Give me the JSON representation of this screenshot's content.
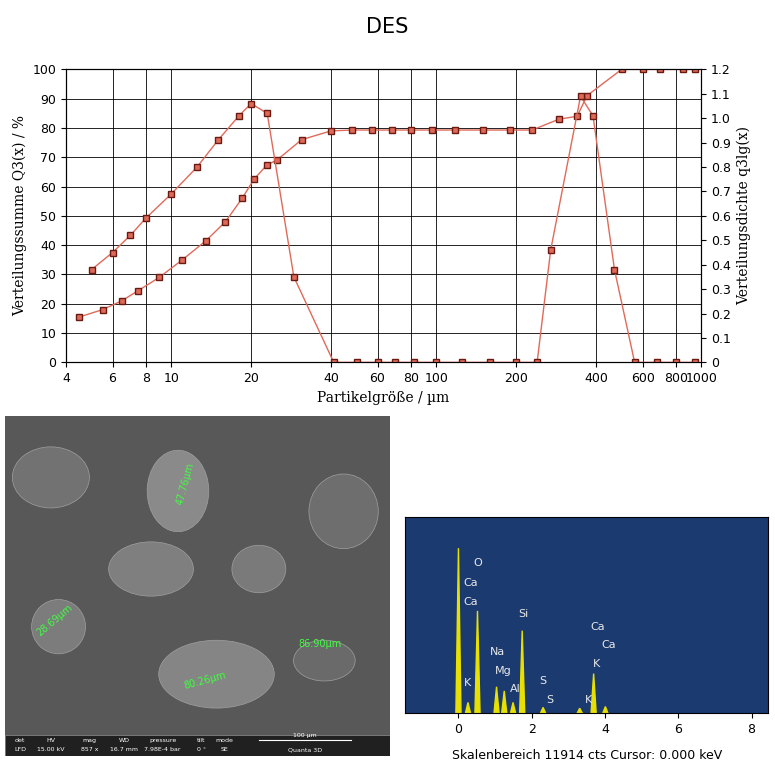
{
  "chart_data": [
    {
      "type": "line",
      "title": "DES",
      "x_label": "Partikelgröße / µm",
      "y_label": "Verteilungssumme Q3(x) / %",
      "y2_label": "Verteilungsdichte q3lg(x)",
      "log": "x",
      "grid": true,
      "xlim": [
        4,
        1000
      ],
      "xticks": [
        4,
        6,
        8,
        10,
        20,
        40,
        60,
        80,
        100,
        200,
        400,
        600,
        800,
        1000
      ],
      "ylim": [
        0,
        100
      ],
      "yticks": [
        0,
        10,
        20,
        30,
        40,
        50,
        60,
        70,
        80,
        90,
        100
      ],
      "y2lim": [
        0,
        1.2
      ],
      "y2ticks": [
        0,
        0.1,
        0.2,
        0.3,
        0.4,
        0.5,
        0.6,
        0.7,
        0.8,
        0.9,
        {
          "value": 1,
          "label": "1.0"
        },
        1.1,
        1.2
      ],
      "series": [
        {
          "axis": "y",
          "color": "#e06a5a",
          "marker": "square",
          "line_style": "solid",
          "x": [
            4.5,
            5.5,
            6.5,
            7.5,
            9,
            11,
            13.5,
            16,
            18.5,
            20.5,
            23,
            25,
            31,
            40,
            48,
            57,
            68,
            80,
            96,
            118,
            150,
            190,
            230,
            290,
            340,
            370,
            500,
            600,
            700,
            850,
            950
          ],
          "values": [
            15.5,
            18,
            21,
            24.5,
            29,
            35,
            41.5,
            48,
            56,
            62.5,
            67.5,
            69,
            76,
            79,
            79.3,
            79.3,
            79.3,
            79.3,
            79.3,
            79.3,
            79.3,
            79.3,
            79.3,
            83,
            84,
            91,
            100,
            100,
            100,
            100,
            100
          ]
        },
        {
          "axis": "y2",
          "color": "#e06a5a",
          "marker": "square",
          "line_style": "solid",
          "x": [
            5,
            6,
            7,
            8,
            10,
            12.5,
            15,
            18,
            20,
            23,
            29,
            41,
            50,
            60,
            70,
            82,
            100,
            125,
            160,
            200,
            240,
            270,
            350,
            390,
            470,
            560,
            680,
            800,
            950
          ],
          "values": [
            0.38,
            0.45,
            0.52,
            0.59,
            0.69,
            0.8,
            0.91,
            1.01,
            1.06,
            1.02,
            0.35,
            0,
            0,
            0,
            0,
            0,
            0,
            0,
            0,
            0,
            0,
            0.46,
            1.09,
            1.01,
            0.38,
            0,
            0,
            0,
            0
          ]
        }
      ]
    },
    {
      "type": "spectrum",
      "caption": "Skalenbereich 11914 cts Cursor: 0.000 keV",
      "xlim": [
        -1.45,
        8.45
      ],
      "xticks": [
        0,
        2,
        4,
        6,
        8
      ],
      "ylim": [
        0,
        11914
      ],
      "tick_labels": "x",
      "color": "#e8e000",
      "x": [
        0.0,
        0.26,
        0.52,
        1.04,
        1.25,
        1.49,
        1.74,
        2.31,
        3.31,
        3.69,
        4.01
      ],
      "values": [
        10000,
        650,
        6200,
        1600,
        1350,
        650,
        5000,
        350,
        300,
        2400,
        400
      ],
      "annotations": [
        {
          "text": "O",
          "x": 0.54,
          "y": 9100
        },
        {
          "text": "Ca",
          "x": 0.33,
          "y": 7900
        },
        {
          "text": "Ca",
          "x": 0.33,
          "y": 6750
        },
        {
          "text": "Si",
          "x": 1.77,
          "y": 6000
        },
        {
          "text": "Na",
          "x": 1.06,
          "y": 3700
        },
        {
          "text": "Mg",
          "x": 1.22,
          "y": 2550
        },
        {
          "text": "Al",
          "x": 1.55,
          "y": 1450
        },
        {
          "text": "K",
          "x": 0.24,
          "y": 1800
        },
        {
          "text": "S",
          "x": 2.31,
          "y": 1950
        },
        {
          "text": "S",
          "x": 2.5,
          "y": 800
        },
        {
          "text": "K",
          "x": 3.54,
          "y": 800
        },
        {
          "text": "Ca",
          "x": 3.81,
          "y": 5250
        },
        {
          "text": "Ca",
          "x": 4.1,
          "y": 4150
        },
        {
          "text": "K",
          "x": 3.76,
          "y": 3000
        }
      ]
    }
  ],
  "sem_image": {
    "measurements": [
      "47.76µm",
      "28.69µm",
      "80.26µm",
      "86.90µm"
    ],
    "info_bar": {
      "labels": [
        "det",
        "HV",
        "mag",
        "WD",
        "pressure",
        "tilt",
        "mode"
      ],
      "values": [
        "LFD",
        "15.00 kV",
        "857 x",
        "16.7 mm",
        "7.98E-4 bar",
        "0 °",
        "SE"
      ]
    },
    "scale_bar": "100 µm",
    "instrument": "Quanta 3D"
  }
}
